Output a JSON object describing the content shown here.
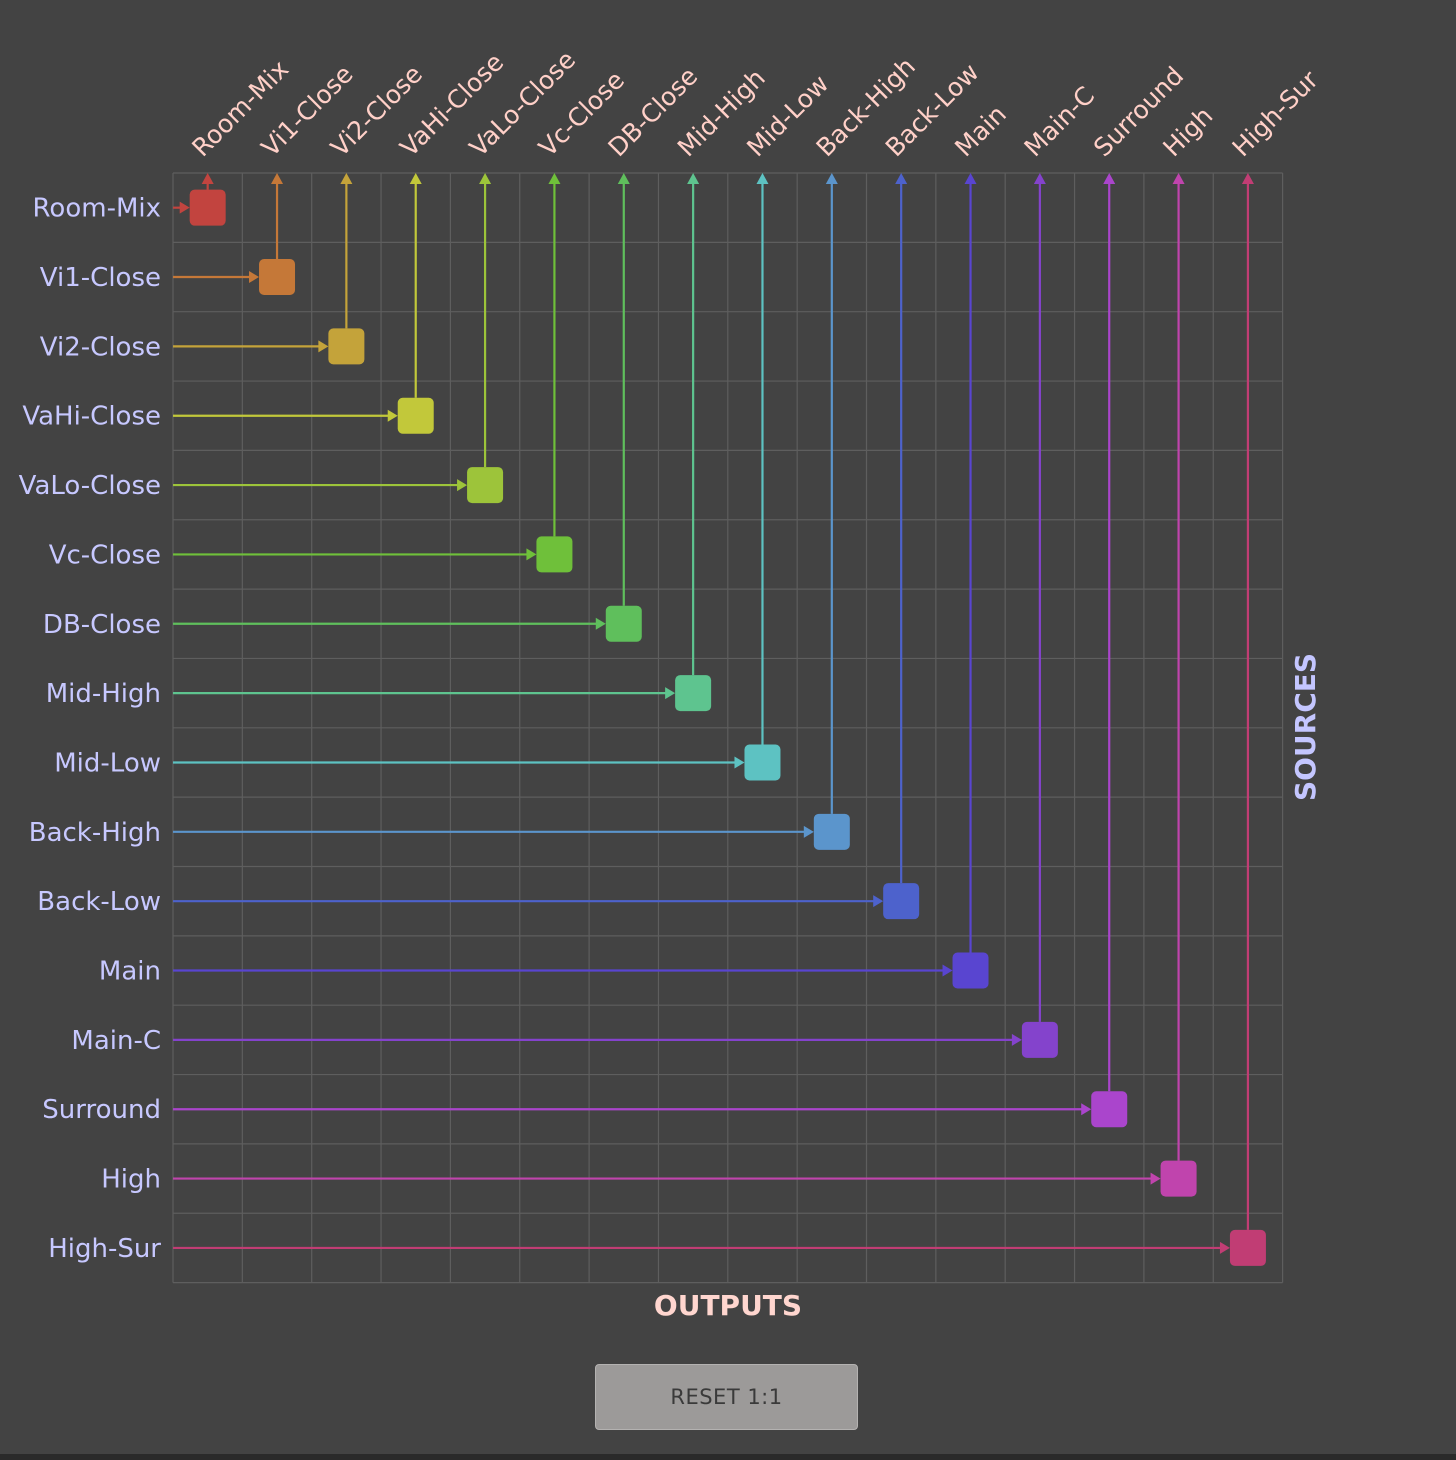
{
  "matrix": {
    "outputs_label": "OUTPUTS",
    "sources_label": "SOURCES",
    "channels": [
      {
        "name": "Room-Mix",
        "color": "#c2443f"
      },
      {
        "name": "Vi1-Close",
        "color": "#c57838"
      },
      {
        "name": "Vi2-Close",
        "color": "#c4a33a"
      },
      {
        "name": "VaHi-Close",
        "color": "#c2c83a"
      },
      {
        "name": "VaLo-Close",
        "color": "#9dc43a"
      },
      {
        "name": "Vc-Close",
        "color": "#6fc03a"
      },
      {
        "name": "DB-Close",
        "color": "#5fbf5c"
      },
      {
        "name": "Mid-High",
        "color": "#5ec48f"
      },
      {
        "name": "Mid-Low",
        "color": "#5dc2c2"
      },
      {
        "name": "Back-High",
        "color": "#5b95cc"
      },
      {
        "name": "Back-Low",
        "color": "#4d62cc"
      },
      {
        "name": "Main",
        "color": "#5945d0"
      },
      {
        "name": "Main-C",
        "color": "#8443cc"
      },
      {
        "name": "Surround",
        "color": "#aa45cc"
      },
      {
        "name": "High",
        "color": "#c044ad"
      },
      {
        "name": "High-Sur",
        "color": "#c13d74"
      }
    ],
    "routing": [
      0,
      1,
      2,
      3,
      4,
      5,
      6,
      7,
      8,
      9,
      10,
      11,
      12,
      13,
      14,
      15
    ],
    "label_colors": {
      "row": "#c7c8ff",
      "col": "#ffd0c8",
      "outputs": "#ffd6cf",
      "sources": "#c4c6ff"
    },
    "grid_color": "#5e5e5e"
  },
  "reset": {
    "label": "RESET 1:1"
  }
}
